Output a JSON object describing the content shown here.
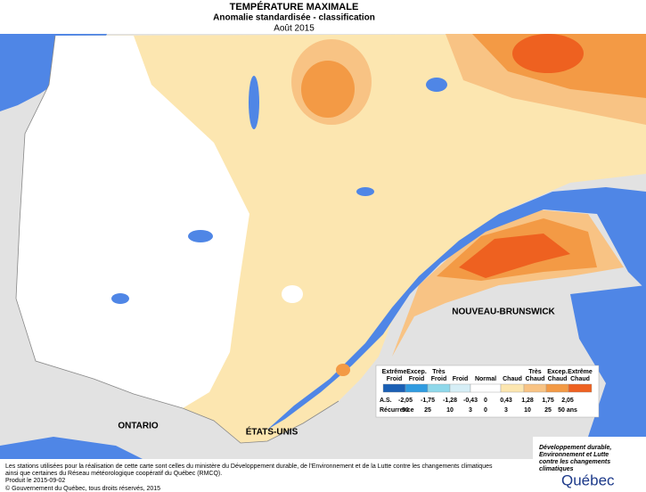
{
  "header": {
    "title": "TEMPÉRATURE MAXIMALE",
    "subtitle": "Anomalie standardisée - classification",
    "date": "Août 2015"
  },
  "map_labels": [
    "ONTARIO",
    "ÉTATS-UNIS",
    "NOUVEAU-BRUNSWICK"
  ],
  "legend": {
    "classes": [
      {
        "lines": [
          "Extrême",
          "Froid"
        ],
        "color": "#1a5fb4"
      },
      {
        "lines": [
          "Excep.",
          "Froid"
        ],
        "color": "#2f9be0"
      },
      {
        "lines": [
          "Très",
          "Froid"
        ],
        "color": "#8fd8ea"
      },
      {
        "lines": [
          "Froid"
        ],
        "color": "#d6eef6"
      },
      {
        "lines": [
          "Normal"
        ],
        "color": "#ffffff"
      },
      {
        "lines": [
          "Chaud"
        ],
        "color": "#fce6b0"
      },
      {
        "lines": [
          "Très",
          "Chaud"
        ],
        "color": "#f8c384"
      },
      {
        "lines": [
          "Excep.",
          "Chaud"
        ],
        "color": "#f39a45"
      },
      {
        "lines": [
          "Extrême",
          "Chaud"
        ],
        "color": "#ee6120"
      }
    ],
    "as_label": "A.S.",
    "thresholds": [
      "-2,05",
      "-1,75",
      "-1,28",
      "-0,43",
      "0",
      "0,43",
      "1,28",
      "1,75",
      "2,05"
    ],
    "recurrence_label": "Récurrence",
    "recurrence": [
      "50",
      "25",
      "10",
      "3",
      "0",
      "3",
      "10",
      "25",
      "50 ans"
    ]
  },
  "footer": {
    "note_lines": [
      "Les stations utilisées pour la réalisation de cette carte sont celles du ministère du Développement durable, de l'Environnement et de la Lutte contre les changements climatiques",
      "ainsi que certaines du Réseau météorologique coopératif du Québec (RMCQ)."
    ],
    "produced": "Produit le 2015-09-02",
    "copyright": "© Gouvernement du Québec, tous droits réservés, 2015"
  },
  "logo": {
    "lines": [
      "Développement durable,",
      "Environnement et Lutte",
      "contre les changements",
      "climatiques"
    ],
    "name": "Québec"
  }
}
